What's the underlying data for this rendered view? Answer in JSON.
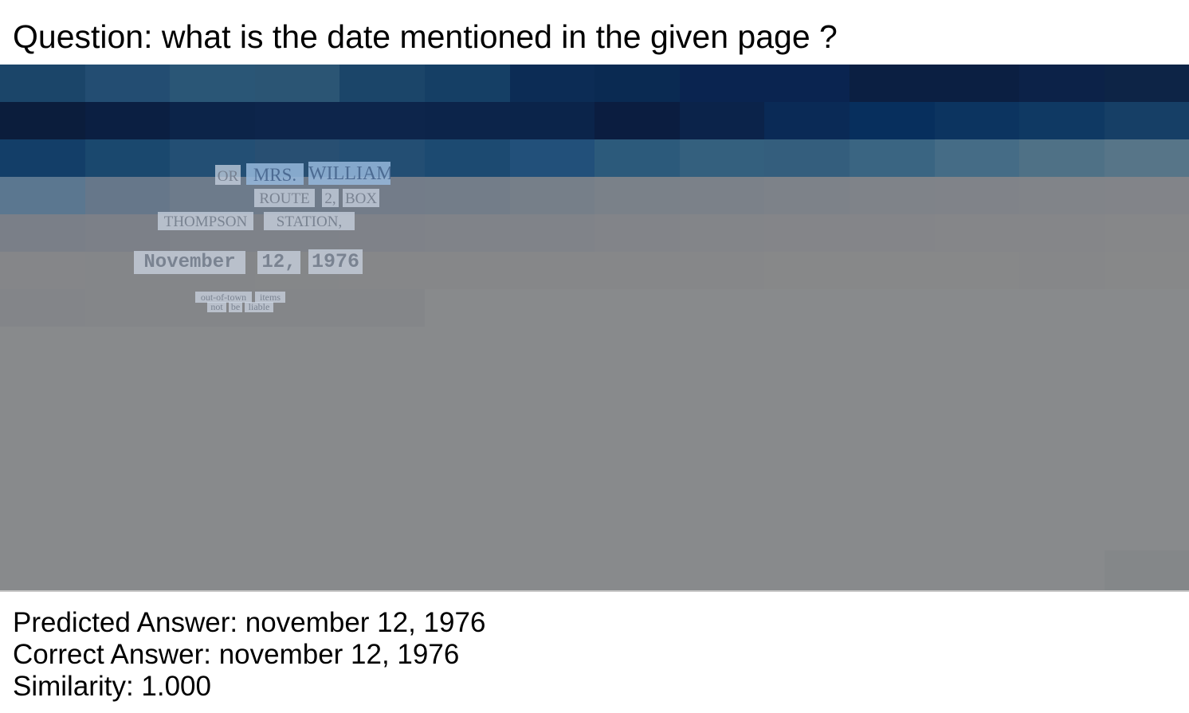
{
  "question": "Question: what is the date mentioned in the given page ?",
  "document_words": {
    "line1": [
      "OR",
      "MRS.",
      "WILLIAM"
    ],
    "line2": [
      "ROUTE",
      "2,",
      "BOX"
    ],
    "line3": [
      "THOMPSON",
      "STATION,"
    ],
    "line4": [
      "November",
      "12,",
      "1976"
    ],
    "line5": [
      "out-of-town",
      "items"
    ],
    "line6": [
      "not",
      "be",
      "liable"
    ]
  },
  "results": {
    "predicted": "Predicted Answer: november 12, 1976",
    "correct": "Correct Answer: november 12, 1976",
    "similarity": "Similarity: 1.000"
  }
}
